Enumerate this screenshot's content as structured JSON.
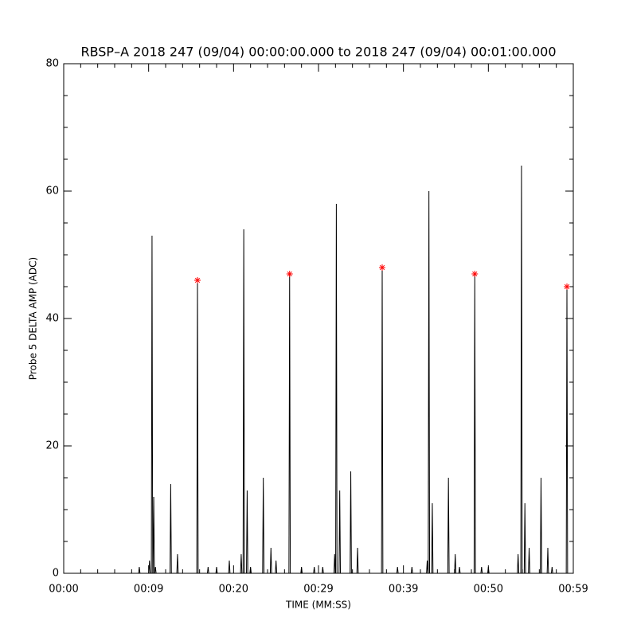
{
  "chart_data": {
    "type": "line",
    "title": "RBSP–A 2018 247 (09/04) 00:00:00.000 to 2018 247 (09/04) 00:01:00.000",
    "x_label": "TIME (MM:SS)",
    "y_label": "Probe 5 DELTA AMP (ADC)",
    "xlim": [
      0,
      60
    ],
    "xticks": [
      {
        "value": 0,
        "label": "00:00"
      },
      {
        "value": 10,
        "label": "00:09"
      },
      {
        "value": 20,
        "label": "00:20"
      },
      {
        "value": 30,
        "label": "00:29"
      },
      {
        "value": 40,
        "label": "00:39"
      },
      {
        "value": 50,
        "label": "00:50"
      },
      {
        "value": 60,
        "label": "00:59"
      }
    ],
    "ylim": [
      0,
      80
    ],
    "yticks": [
      0,
      20,
      40,
      60,
      80
    ],
    "series": [
      {
        "color": "#000000",
        "marker": "none",
        "x": [
          0,
          8.82,
          8.9,
          8.98,
          10.02,
          10.1,
          10.18,
          10.32,
          10.4,
          10.48,
          10.52,
          10.6,
          10.68,
          10.72,
          10.8,
          10.88,
          12.52,
          12.6,
          12.68,
          13.32,
          13.4,
          13.48,
          15.67,
          15.75,
          15.83,
          16.92,
          17.0,
          17.08,
          17.92,
          18.0,
          18.08,
          19.42,
          19.5,
          19.58,
          20.82,
          20.9,
          20.98,
          21.12,
          21.2,
          21.28,
          21.52,
          21.6,
          21.68,
          21.92,
          22.0,
          22.08,
          23.42,
          23.5,
          23.58,
          24.32,
          24.4,
          24.48,
          24.92,
          25.0,
          25.08,
          26.52,
          26.6,
          26.68,
          27.92,
          28.0,
          28.08,
          29.42,
          29.5,
          29.58,
          30.42,
          30.5,
          30.58,
          31.82,
          31.9,
          31.98,
          32.02,
          32.1,
          32.18,
          32.42,
          32.5,
          32.58,
          33.72,
          33.8,
          33.88,
          34.52,
          34.6,
          34.68,
          37.42,
          37.5,
          37.58,
          39.22,
          39.3,
          39.38,
          40.92,
          41.0,
          41.08,
          42.72,
          42.8,
          42.88,
          42.92,
          43.0,
          43.08,
          43.32,
          43.4,
          43.48,
          45.22,
          45.3,
          45.38,
          46.02,
          46.1,
          46.18,
          46.52,
          46.6,
          46.68,
          48.32,
          48.4,
          48.48,
          49.12,
          49.2,
          49.28,
          49.92,
          50.0,
          50.08,
          53.42,
          53.5,
          53.58,
          53.82,
          53.9,
          53.98,
          54.22,
          54.3,
          54.38,
          54.72,
          54.8,
          54.88,
          56.12,
          56.2,
          56.28,
          56.92,
          57.0,
          57.08,
          57.42,
          57.5,
          57.58,
          59.17,
          59.25,
          59.33,
          60
        ],
        "values": [
          0,
          0,
          1,
          0,
          0,
          2,
          0,
          0,
          53,
          0,
          0,
          12,
          0,
          0,
          1,
          0,
          0,
          14,
          0,
          0,
          3,
          0,
          0,
          46,
          0,
          0,
          1,
          0,
          0,
          1,
          0,
          0,
          2,
          0,
          0,
          3,
          0,
          0,
          54,
          0,
          0,
          13,
          0,
          0,
          1,
          0,
          0,
          15,
          0,
          0,
          4,
          0,
          0,
          2,
          0,
          0,
          47,
          0,
          0,
          1,
          0,
          0,
          1,
          0,
          0,
          1,
          0,
          0,
          3,
          0,
          0,
          58,
          0,
          0,
          13,
          0,
          0,
          16,
          0,
          0,
          4,
          0,
          0,
          48,
          0,
          0,
          1,
          0,
          0,
          1,
          0,
          0,
          2,
          0,
          0,
          60,
          0,
          0,
          11,
          0,
          0,
          15,
          0,
          0,
          3,
          0,
          0,
          1,
          0,
          0,
          47,
          0,
          0,
          1,
          0,
          0,
          1,
          0,
          0,
          3,
          0,
          0,
          64,
          0,
          0,
          11,
          0,
          0,
          4,
          0,
          0,
          15,
          0,
          0,
          4,
          0,
          0,
          1,
          0,
          0,
          45,
          0,
          0
        ]
      },
      {
        "color": "#ff0000",
        "marker": "star",
        "x": [
          15.75,
          26.6,
          37.5,
          48.4,
          59.25
        ],
        "values": [
          46,
          47,
          48,
          47,
          45
        ]
      }
    ]
  }
}
